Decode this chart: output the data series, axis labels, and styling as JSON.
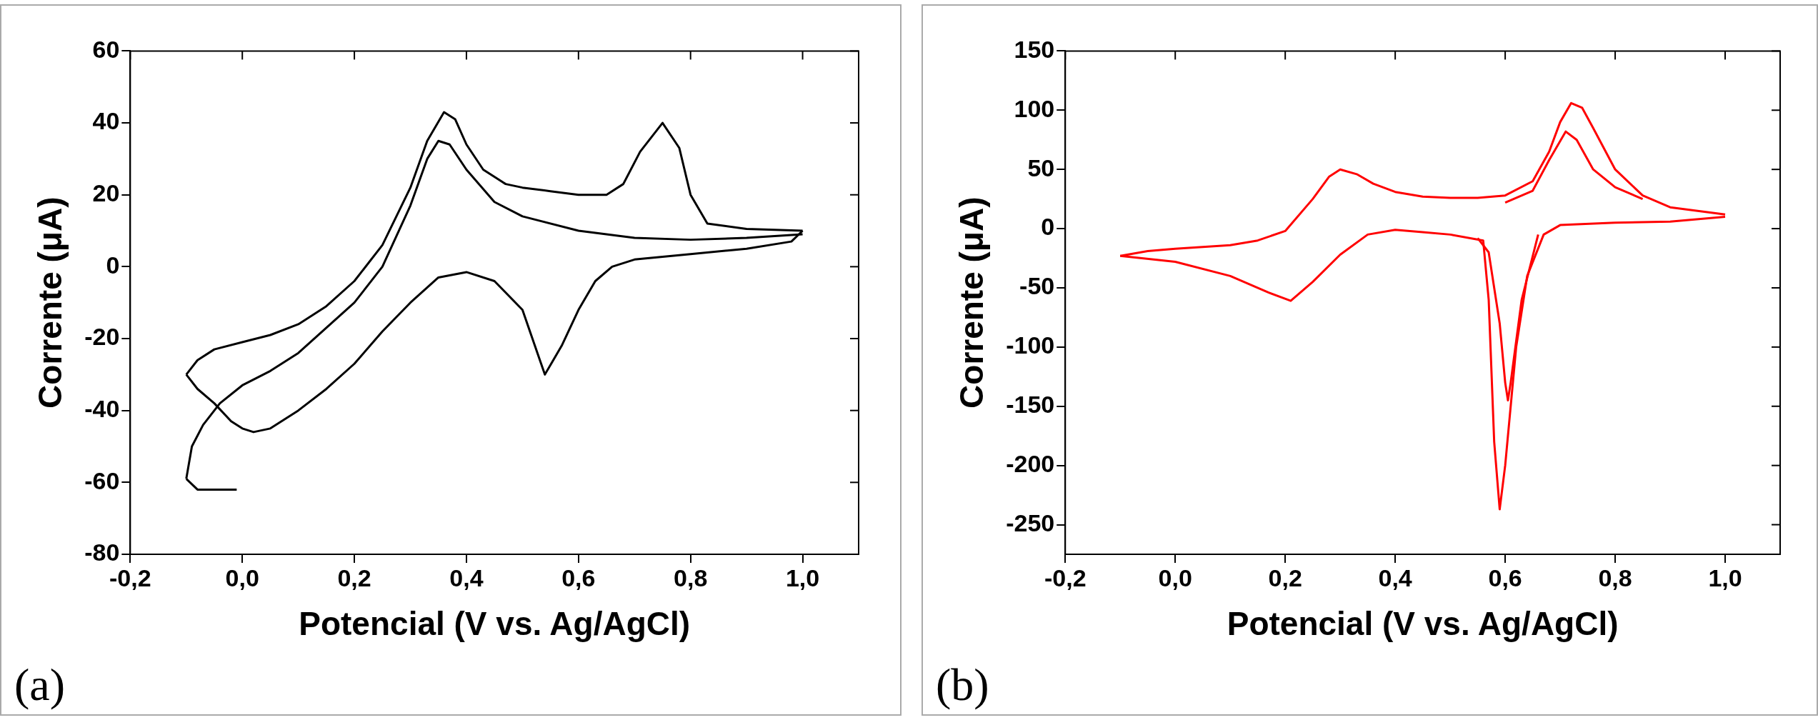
{
  "chart_data": [
    {
      "type": "line",
      "xlabel": "Potencial (V vs. Ag/AgCl)",
      "ylabel": "Corrente (μA)",
      "annotations": [
        "(a)"
      ],
      "xlim": [
        -0.2,
        1.1
      ],
      "xticks": [
        {
          "value": -0.2,
          "label": "-0,2"
        },
        {
          "value": 0,
          "label": "0,0"
        },
        {
          "value": 0.2,
          "label": "0,2"
        },
        {
          "value": 0.4,
          "label": "0,4"
        },
        {
          "value": 0.6,
          "label": "0,6"
        },
        {
          "value": 0.8,
          "label": "0,8"
        },
        {
          "value": 1.0,
          "label": "1,0"
        }
      ],
      "ylim": [
        -80,
        60
      ],
      "yticks": [
        -80,
        -60,
        -40,
        -20,
        0,
        20,
        40,
        60
      ],
      "series": [
        {
          "color": "#000000",
          "x": [
            -0.1,
            -0.08,
            -0.05,
            -0.01
          ],
          "values": [
            -59,
            -62,
            -62,
            -62
          ]
        },
        {
          "color": "#000000",
          "x": [
            -0.1,
            -0.09,
            -0.07,
            -0.04,
            0.0,
            0.05,
            0.1,
            0.15,
            0.2,
            0.25,
            0.3,
            0.33,
            0.35,
            0.37,
            0.4,
            0.45,
            0.5,
            0.6,
            0.7,
            0.8,
            0.9,
            1.0
          ],
          "values": [
            -59,
            -50,
            -44,
            -38,
            -33,
            -29,
            -24,
            -17,
            -10,
            0,
            17,
            30,
            35,
            34,
            27,
            18,
            14,
            10,
            8,
            7.5,
            8,
            9
          ]
        },
        {
          "color": "#000000",
          "x": [
            -0.1,
            -0.08,
            -0.05,
            0.0,
            0.05,
            0.1,
            0.15,
            0.2,
            0.25,
            0.3,
            0.33,
            0.36,
            0.38,
            0.4,
            0.43,
            0.47,
            0.5,
            0.55,
            0.6,
            0.65,
            0.68,
            0.71,
            0.75,
            0.78,
            0.8,
            0.83,
            0.9,
            1.0
          ],
          "values": [
            -30,
            -26,
            -23,
            -21,
            -19,
            -16,
            -11,
            -4,
            6,
            22,
            35,
            43,
            41,
            34,
            27,
            23,
            22,
            21,
            20,
            20,
            23,
            32,
            40,
            33,
            20,
            12,
            10.5,
            10
          ]
        },
        {
          "color": "#000000",
          "x": [
            -0.1,
            -0.08,
            -0.05,
            -0.02,
            0.0,
            0.02,
            0.05,
            0.1,
            0.15,
            0.2,
            0.25,
            0.3,
            0.35,
            0.4,
            0.45,
            0.5,
            0.54,
            0.57,
            0.6,
            0.63,
            0.66,
            0.7,
            0.8,
            0.9,
            0.98,
            1.0
          ],
          "values": [
            -30,
            -34,
            -38,
            -43,
            -45,
            -46,
            -45,
            -40,
            -34,
            -27,
            -18,
            -10,
            -3,
            -1.5,
            -4,
            -12,
            -30,
            -22,
            -12,
            -4,
            0,
            2,
            3.5,
            5,
            7,
            10
          ]
        }
      ]
    },
    {
      "type": "line",
      "xlabel": "Potencial (V vs. Ag/AgCl)",
      "ylabel": "Corrente (μA)",
      "annotations": [
        "(b)"
      ],
      "xlim": [
        -0.2,
        1.1
      ],
      "xticks": [
        {
          "value": -0.2,
          "label": "-0,2"
        },
        {
          "value": 0,
          "label": "0,0"
        },
        {
          "value": 0.2,
          "label": "0,2"
        },
        {
          "value": 0.4,
          "label": "0,4"
        },
        {
          "value": 0.6,
          "label": "0,6"
        },
        {
          "value": 0.8,
          "label": "0,8"
        },
        {
          "value": 1.0,
          "label": "1,0"
        }
      ],
      "ylim": [
        -275,
        150
      ],
      "yticks": [
        -250,
        -200,
        -150,
        -100,
        -50,
        0,
        50,
        100,
        150
      ],
      "series": [
        {
          "color": "#ff0000",
          "x": [
            -0.1,
            -0.05,
            0.0,
            0.1,
            0.15,
            0.2,
            0.25,
            0.28,
            0.3,
            0.33,
            0.36,
            0.4,
            0.45,
            0.5,
            0.55,
            0.6,
            0.65,
            0.68,
            0.7,
            0.72,
            0.74,
            0.76,
            0.8,
            0.85,
            0.9,
            1.0
          ],
          "values": [
            -23,
            -19,
            -17,
            -14,
            -10,
            -2,
            25,
            44,
            50,
            46,
            38,
            31,
            27,
            26,
            26,
            28,
            40,
            65,
            90,
            106,
            102,
            85,
            50,
            28,
            18,
            12
          ]
        },
        {
          "color": "#ff0000",
          "x": [
            -0.1,
            0.0,
            0.1,
            0.17,
            0.21,
            0.25,
            0.3,
            0.35,
            0.4,
            0.45,
            0.5,
            0.56,
            0.57,
            0.58,
            0.59,
            0.6,
            0.62,
            0.64,
            0.67,
            0.7,
            0.8,
            0.9,
            1.0
          ],
          "values": [
            -23,
            -28,
            -40,
            -54,
            -61,
            -45,
            -22,
            -5,
            -1,
            -3,
            -5,
            -10,
            -60,
            -180,
            -237,
            -200,
            -100,
            -40,
            -5,
            3,
            5,
            6,
            10
          ]
        },
        {
          "color": "#ff0000",
          "x": [
            0.6,
            0.65,
            0.68,
            0.71,
            0.73,
            0.76,
            0.8,
            0.85
          ],
          "values": [
            22,
            32,
            58,
            82,
            75,
            50,
            35,
            25
          ]
        },
        {
          "color": "#ff0000",
          "x": [
            0.55,
            0.57,
            0.59,
            0.6,
            0.605,
            0.61,
            0.63,
            0.66
          ],
          "values": [
            -8,
            -20,
            -80,
            -130,
            -145,
            -130,
            -60,
            -5
          ]
        }
      ]
    }
  ]
}
